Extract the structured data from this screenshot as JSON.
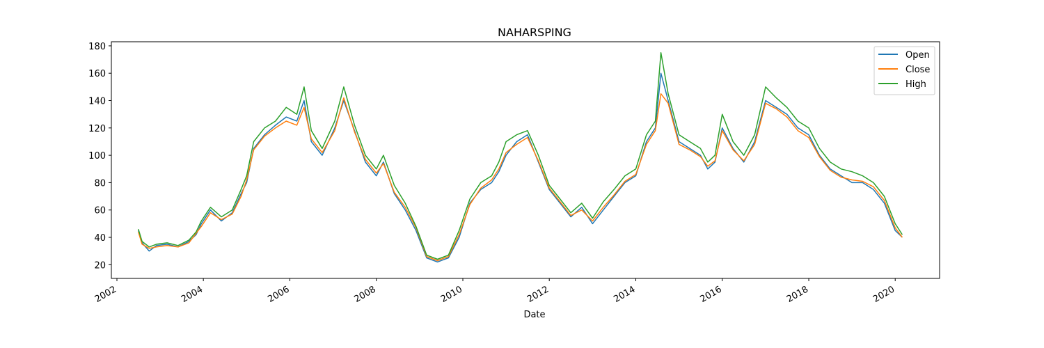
{
  "chart_data": {
    "type": "line",
    "title": "NAHARSPING",
    "xlabel": "Date",
    "ylabel": "",
    "xlim": [
      "2001-11-15",
      "2021-01-10"
    ],
    "ylim": [
      10,
      183
    ],
    "grid": false,
    "legend_position": "top-right",
    "x_ticks": [
      "2002-01-01",
      "2004-01-01",
      "2006-01-01",
      "2008-01-01",
      "2010-01-01",
      "2012-01-01",
      "2014-01-01",
      "2016-01-01",
      "2018-01-01",
      "2020-01-01"
    ],
    "x_tick_labels": [
      "2002",
      "2004",
      "2006",
      "2008",
      "2010",
      "2012",
      "2014",
      "2016",
      "2018",
      "2020"
    ],
    "y_ticks": [
      20,
      40,
      60,
      80,
      100,
      120,
      140,
      160,
      180
    ],
    "y_tick_labels": [
      "20",
      "40",
      "60",
      "80",
      "100",
      "120",
      "140",
      "160",
      "180"
    ],
    "dates": [
      "2002-07-01",
      "2002-08-01",
      "2002-10-01",
      "2002-12-01",
      "2003-03-01",
      "2003-06-01",
      "2003-09-01",
      "2003-11-01",
      "2003-12-15",
      "2004-03-01",
      "2004-06-01",
      "2004-09-01",
      "2004-11-15",
      "2005-01-01",
      "2005-03-01",
      "2005-06-01",
      "2005-09-01",
      "2005-12-01",
      "2006-03-01",
      "2006-05-01",
      "2006-07-01",
      "2006-10-01",
      "2007-01-15",
      "2007-04-01",
      "2007-07-01",
      "2007-10-01",
      "2008-01-01",
      "2008-03-01",
      "2008-06-01",
      "2008-09-01",
      "2008-12-01",
      "2009-03-01",
      "2009-06-01",
      "2009-09-01",
      "2009-12-01",
      "2010-03-01",
      "2010-06-01",
      "2010-09-01",
      "2010-11-01",
      "2011-01-01",
      "2011-04-01",
      "2011-07-01",
      "2011-10-01",
      "2012-01-01",
      "2012-04-01",
      "2012-07-01",
      "2012-10-01",
      "2013-01-01",
      "2013-04-01",
      "2013-07-01",
      "2013-10-01",
      "2014-01-01",
      "2014-04-01",
      "2014-06-15",
      "2014-08-01",
      "2014-10-01",
      "2015-01-01",
      "2015-04-01",
      "2015-07-01",
      "2015-09-01",
      "2015-11-01",
      "2016-01-01",
      "2016-04-01",
      "2016-07-01",
      "2016-10-01",
      "2017-01-01",
      "2017-04-01",
      "2017-07-01",
      "2017-10-01",
      "2018-01-01",
      "2018-04-01",
      "2018-07-01",
      "2018-10-01",
      "2019-01-01",
      "2019-04-01",
      "2019-07-01",
      "2019-10-01",
      "2020-01-01",
      "2020-03-01"
    ],
    "series": [
      {
        "name": "Open",
        "color": "#1f77b4",
        "values": [
          45,
          36,
          30,
          34,
          35,
          33,
          37,
          42,
          50,
          60,
          52,
          58,
          72,
          80,
          105,
          115,
          122,
          128,
          125,
          140,
          110,
          100,
          120,
          140,
          118,
          95,
          85,
          95,
          72,
          60,
          45,
          25,
          22,
          25,
          40,
          65,
          75,
          80,
          88,
          100,
          110,
          115,
          95,
          75,
          65,
          55,
          62,
          50,
          60,
          70,
          80,
          85,
          110,
          120,
          160,
          140,
          110,
          105,
          100,
          90,
          95,
          120,
          105,
          95,
          110,
          140,
          135,
          130,
          120,
          115,
          100,
          90,
          85,
          80,
          80,
          75,
          65,
          45,
          40
        ]
      },
      {
        "name": "Close",
        "color": "#ff7f0e",
        "values": [
          44,
          35,
          32,
          33,
          34,
          33,
          36,
          43,
          48,
          58,
          53,
          57,
          70,
          82,
          104,
          114,
          120,
          125,
          122,
          135,
          112,
          102,
          118,
          142,
          117,
          97,
          87,
          94,
          73,
          62,
          47,
          26,
          23,
          26,
          42,
          64,
          76,
          82,
          90,
          102,
          108,
          113,
          96,
          76,
          66,
          56,
          60,
          52,
          62,
          71,
          81,
          86,
          108,
          118,
          145,
          138,
          108,
          104,
          99,
          92,
          96,
          118,
          104,
          96,
          108,
          138,
          134,
          128,
          118,
          113,
          99,
          89,
          84,
          82,
          81,
          77,
          67,
          47,
          40
        ]
      },
      {
        "name": "High",
        "color": "#2ca02c",
        "values": [
          46,
          37,
          33,
          35,
          36,
          34,
          38,
          44,
          52,
          62,
          55,
          60,
          75,
          85,
          110,
          120,
          125,
          135,
          130,
          150,
          118,
          105,
          125,
          150,
          122,
          100,
          90,
          100,
          78,
          65,
          48,
          27,
          24,
          27,
          45,
          68,
          80,
          85,
          95,
          110,
          115,
          118,
          100,
          78,
          68,
          58,
          65,
          54,
          66,
          75,
          85,
          90,
          115,
          125,
          175,
          145,
          115,
          110,
          105,
          95,
          100,
          130,
          110,
          100,
          115,
          150,
          142,
          135,
          125,
          120,
          105,
          95,
          90,
          88,
          85,
          80,
          70,
          50,
          42
        ]
      }
    ]
  }
}
